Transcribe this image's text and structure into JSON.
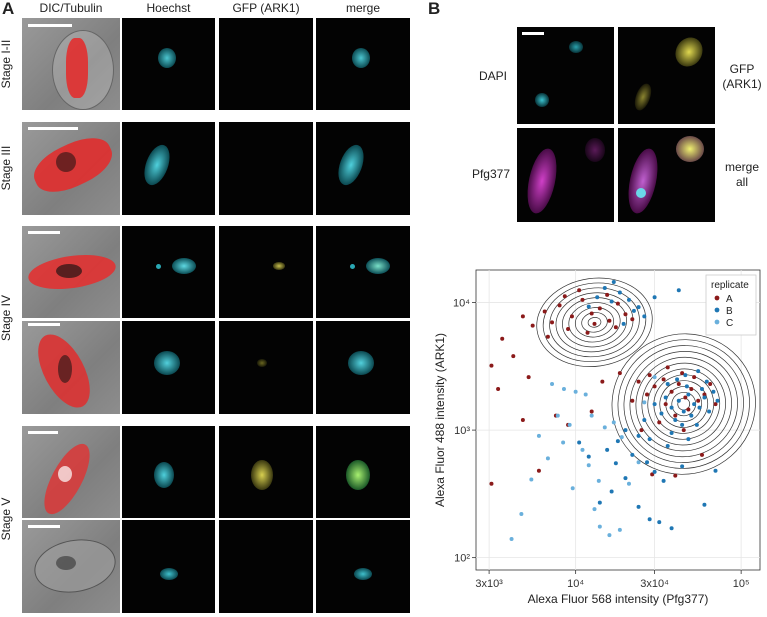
{
  "panel_a": {
    "letter": "A",
    "columns": [
      "DIC/Tubulin",
      "Hoechst",
      "GFP (ARK1)",
      "merge"
    ],
    "stages": [
      "Stage I-II",
      "Stage III",
      "Stage IV",
      "Stage V"
    ]
  },
  "panel_b": {
    "letter": "B",
    "labels": {
      "dapi": "DAPI",
      "gfp_line1": "GFP",
      "gfp_line2": "(ARK1)",
      "pfg": "Pfg377",
      "merge_line1": "merge",
      "merge_line2": "all"
    }
  },
  "chart_data": {
    "type": "scatter",
    "xlabel": "Alexa Fluor 568 intensity (Pfg377)",
    "ylabel": "Alexa Fluor 488 intensity (ARK1)",
    "x_scale": "log",
    "y_scale": "log",
    "xlim": [
      2500,
      130000
    ],
    "ylim": [
      80,
      18000
    ],
    "x_ticks": [
      {
        "value": 3000,
        "label": "3x10³"
      },
      {
        "value": 10000,
        "label": "10⁴"
      },
      {
        "value": 30000,
        "label": "3x10⁴"
      },
      {
        "value": 100000,
        "label": "10⁵"
      }
    ],
    "y_ticks": [
      {
        "value": 100,
        "label": "10²"
      },
      {
        "value": 1000,
        "label": "10³"
      },
      {
        "value": 10000,
        "label": "10⁴"
      }
    ],
    "grid": true,
    "legend": {
      "title": "replicate",
      "placement": "top-right"
    },
    "colors": {
      "A": "#8b1a1a",
      "B": "#1f77b4",
      "C": "#6ab0dc"
    },
    "clusters": [
      {
        "name": "upper-left",
        "center_x": 13000,
        "center_y": 7000
      },
      {
        "name": "lower-right",
        "center_x": 45000,
        "center_y": 1600
      }
    ],
    "series": [
      {
        "name": "A",
        "points": [
          [
            6500,
            8500
          ],
          [
            8000,
            9500
          ],
          [
            9500,
            7800
          ],
          [
            11000,
            10500
          ],
          [
            12500,
            8200
          ],
          [
            14000,
            9000
          ],
          [
            16000,
            7200
          ],
          [
            18000,
            9800
          ],
          [
            20000,
            8100
          ],
          [
            9000,
            6200
          ],
          [
            7200,
            7000
          ],
          [
            13000,
            6800
          ],
          [
            15500,
            11500
          ],
          [
            10500,
            12500
          ],
          [
            5500,
            6600
          ],
          [
            4800,
            7800
          ],
          [
            11800,
            5800
          ],
          [
            17500,
            6400
          ],
          [
            22000,
            7400
          ],
          [
            8600,
            11200
          ],
          [
            6800,
            5400
          ],
          [
            3600,
            5200
          ],
          [
            3100,
            3200
          ],
          [
            4200,
            3800
          ],
          [
            5200,
            2600
          ],
          [
            3400,
            2100
          ],
          [
            7600,
            1300
          ],
          [
            9000,
            1100
          ],
          [
            12500,
            1400
          ],
          [
            14500,
            2400
          ],
          [
            18500,
            2800
          ],
          [
            4800,
            1200
          ],
          [
            3100,
            380
          ],
          [
            6000,
            480
          ],
          [
            27000,
            1900
          ],
          [
            30000,
            2200
          ],
          [
            34000,
            2500
          ],
          [
            38000,
            2000
          ],
          [
            42000,
            2300
          ],
          [
            46000,
            1800
          ],
          [
            50000,
            2100
          ],
          [
            55000,
            1700
          ],
          [
            60000,
            1900
          ],
          [
            35000,
            1600
          ],
          [
            40000,
            1300
          ],
          [
            48000,
            1450
          ],
          [
            32000,
            1150
          ],
          [
            28000,
            2700
          ],
          [
            25000,
            1000
          ],
          [
            22000,
            1700
          ],
          [
            65000,
            2300
          ],
          [
            70000,
            1600
          ],
          [
            44000,
            2800
          ],
          [
            36000,
            3100
          ],
          [
            52000,
            2600
          ],
          [
            29000,
            450
          ],
          [
            40000,
            440
          ],
          [
            58000,
            640
          ],
          [
            24000,
            2400
          ],
          [
            45000,
            1000
          ]
        ]
      },
      {
        "name": "B",
        "points": [
          [
            15000,
            13000
          ],
          [
            18500,
            12000
          ],
          [
            21000,
            10500
          ],
          [
            24000,
            9200
          ],
          [
            13500,
            11000
          ],
          [
            16500,
            10200
          ],
          [
            19500,
            6800
          ],
          [
            26000,
            7800
          ],
          [
            22500,
            8600
          ],
          [
            12000,
            9300
          ],
          [
            30000,
            11000
          ],
          [
            17000,
            14500
          ],
          [
            42000,
            12500
          ],
          [
            35000,
            1800
          ],
          [
            38000,
            1500
          ],
          [
            42000,
            1700
          ],
          [
            45000,
            1400
          ],
          [
            48000,
            1900
          ],
          [
            52000,
            1600
          ],
          [
            56000,
            1500
          ],
          [
            60000,
            1800
          ],
          [
            64000,
            1400
          ],
          [
            40000,
            1200
          ],
          [
            44000,
            1100
          ],
          [
            50000,
            1300
          ],
          [
            54000,
            1100
          ],
          [
            36000,
            2300
          ],
          [
            41000,
            2500
          ],
          [
            47000,
            2200
          ],
          [
            58000,
            2100
          ],
          [
            62000,
            2400
          ],
          [
            68000,
            2000
          ],
          [
            72000,
            1700
          ],
          [
            33000,
            1350
          ],
          [
            30000,
            1600
          ],
          [
            38000,
            950
          ],
          [
            46000,
            2700
          ],
          [
            55000,
            2900
          ],
          [
            26000,
            1200
          ],
          [
            24000,
            900
          ],
          [
            20000,
            1000
          ],
          [
            18000,
            820
          ],
          [
            15500,
            700
          ],
          [
            22000,
            640
          ],
          [
            27000,
            560
          ],
          [
            30000,
            470
          ],
          [
            34000,
            400
          ],
          [
            20000,
            420
          ],
          [
            16500,
            330
          ],
          [
            14000,
            270
          ],
          [
            24000,
            250
          ],
          [
            28000,
            200
          ],
          [
            32000,
            190
          ],
          [
            38000,
            170
          ],
          [
            12000,
            620
          ],
          [
            10500,
            800
          ],
          [
            17500,
            550
          ],
          [
            44000,
            520
          ],
          [
            60000,
            260
          ],
          [
            70000,
            480
          ],
          [
            36000,
            750
          ],
          [
            28000,
            850
          ],
          [
            48000,
            850
          ]
        ]
      },
      {
        "name": "C",
        "points": [
          [
            7200,
            2300
          ],
          [
            8500,
            2100
          ],
          [
            10000,
            2000
          ],
          [
            11500,
            1900
          ],
          [
            7800,
            1300
          ],
          [
            9200,
            1100
          ],
          [
            11000,
            700
          ],
          [
            8400,
            800
          ],
          [
            12000,
            530
          ],
          [
            6800,
            600
          ],
          [
            6000,
            900
          ],
          [
            9600,
            350
          ],
          [
            13000,
            240
          ],
          [
            14000,
            175
          ],
          [
            16000,
            150
          ],
          [
            18500,
            165
          ],
          [
            5400,
            410
          ],
          [
            4700,
            220
          ],
          [
            12500,
            1300
          ],
          [
            15000,
            1050
          ],
          [
            4100,
            140
          ],
          [
            21000,
            380
          ],
          [
            24000,
            560
          ],
          [
            26000,
            1650
          ],
          [
            30000,
            2600
          ],
          [
            19000,
            880
          ],
          [
            17000,
            1150
          ],
          [
            13800,
            400
          ]
        ]
      }
    ]
  }
}
